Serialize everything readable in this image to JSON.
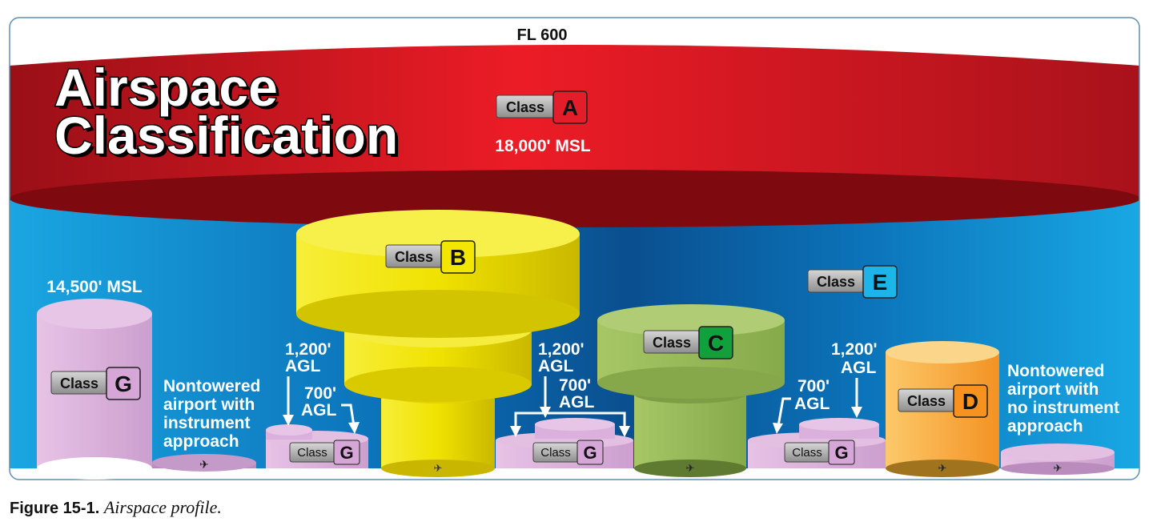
{
  "title": {
    "line1": "Airspace",
    "line2": "Classification"
  },
  "top_label": "FL 600",
  "badge_word": "Class",
  "classes": {
    "A": {
      "letter": "A",
      "color": "#e41d2a"
    },
    "B": {
      "letter": "B",
      "color": "#f3e600"
    },
    "C": {
      "letter": "C",
      "color": "#12a03c"
    },
    "D": {
      "letter": "D",
      "color": "#f7921e"
    },
    "E": {
      "letter": "E",
      "color": "#1db4ea"
    },
    "G": {
      "letter": "G",
      "color": "#d7a6d8"
    }
  },
  "altitudes": {
    "a_floor": "18,000' MSL",
    "g_ceiling": "14,500' MSL",
    "agl_1200": [
      "1,200'",
      "AGL"
    ],
    "agl_700": [
      "700'",
      "AGL"
    ]
  },
  "airports": {
    "with_approach": [
      "Nontowered",
      "airport with",
      "instrument",
      "approach"
    ],
    "no_approach": [
      "Nontowered",
      "airport with",
      "no instrument",
      "approach"
    ]
  },
  "caption": {
    "figure": "Figure 15-1.",
    "text": "Airspace profile."
  },
  "colors": {
    "class_a_red": "#d71f2a",
    "class_e_blue": "#0a5fa6",
    "class_b_yellow": "#f2e500",
    "class_c_green": "#9bbb5c",
    "class_d_orange": "#f6a63a",
    "class_g_pink": "#dcb0dc"
  }
}
